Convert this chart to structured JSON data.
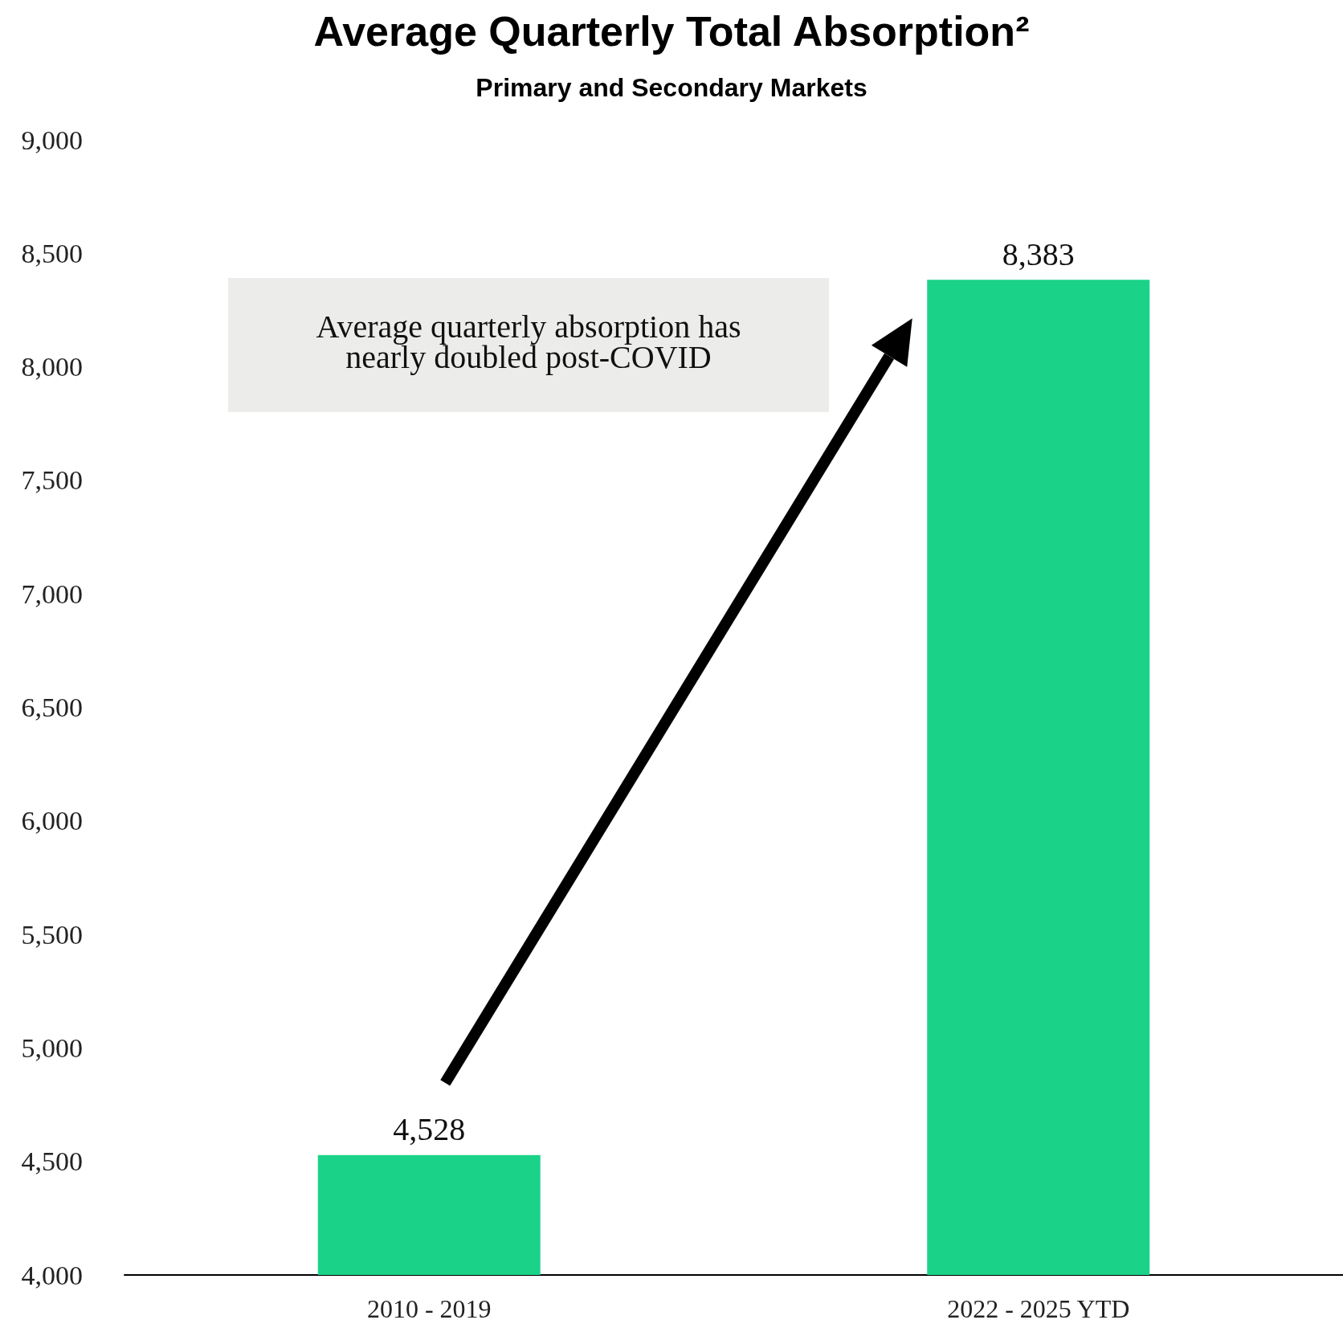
{
  "chart_data": {
    "type": "bar",
    "title": "Average Quarterly Total Absorption²",
    "subtitle": "Primary and Secondary Markets",
    "categories": [
      "2010 - 2019",
      "2022 - 2025 YTD"
    ],
    "values": [
      4528,
      8383
    ],
    "color": "#1bd388",
    "value_labels": [
      "4,528",
      "8,383"
    ],
    "ylim": [
      4000,
      9000
    ],
    "yticks": [
      {
        "value": 4000,
        "label": "4,000"
      },
      {
        "value": 4500,
        "label": "4,500"
      },
      {
        "value": 5000,
        "label": "5,000"
      },
      {
        "value": 5500,
        "label": "5,500"
      },
      {
        "value": 6000,
        "label": "6,000"
      },
      {
        "value": 6500,
        "label": "6,500"
      },
      {
        "value": 7000,
        "label": "7,000"
      },
      {
        "value": 7500,
        "label": "7,500"
      },
      {
        "value": 8000,
        "label": "8,000"
      },
      {
        "value": 8500,
        "label": "8,500"
      },
      {
        "value": 9000,
        "label": "9,000"
      }
    ],
    "grid": false,
    "annotations": [
      "Average quarterly absorption has nearly doubled post-COVID"
    ]
  }
}
